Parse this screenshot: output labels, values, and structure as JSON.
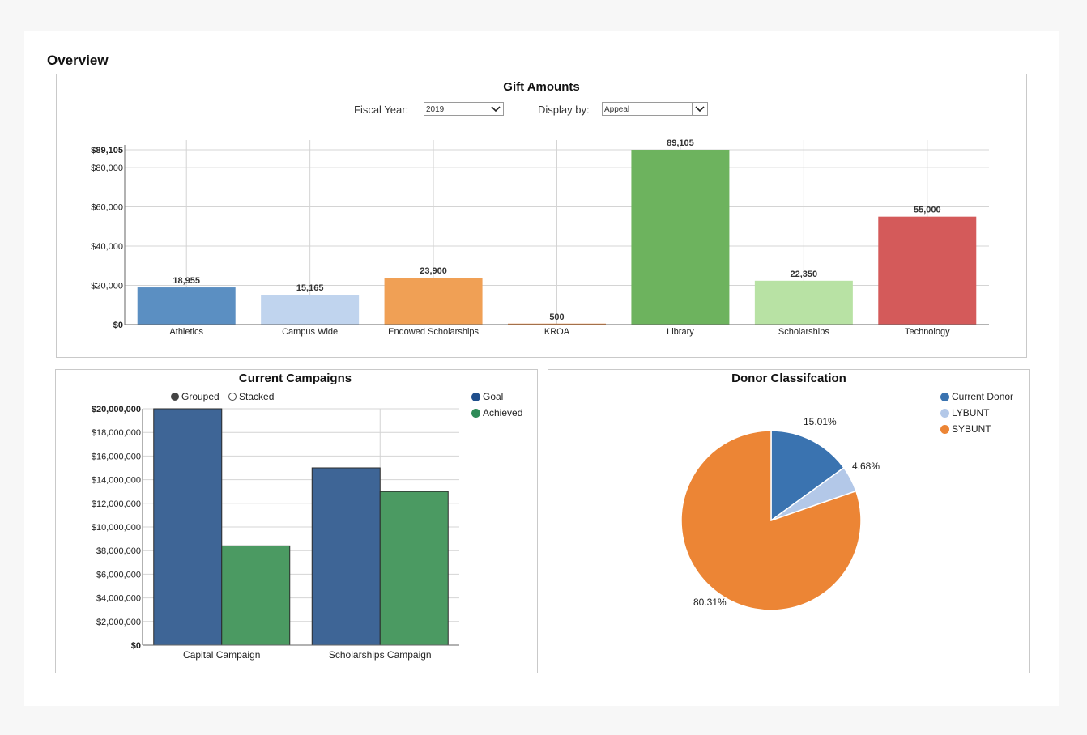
{
  "page": {
    "title": "Overview"
  },
  "gift_panel": {
    "title": "Gift Amounts",
    "fiscal_year_label": "Fiscal Year:",
    "fiscal_year_value": "2019",
    "display_by_label": "Display by:",
    "display_by_value": "Appeal"
  },
  "campaign_panel": {
    "title": "Current Campaigns",
    "grouped_label": "Grouped",
    "stacked_label": "Stacked"
  },
  "donor_panel": {
    "title": "Donor Classifcation"
  },
  "chart_data": [
    {
      "id": "gift",
      "type": "bar",
      "title": "Gift Amounts",
      "categories": [
        "Athletics",
        "Campus Wide",
        "Endowed Scholarships",
        "KROA",
        "Library",
        "Scholarships",
        "Technology"
      ],
      "values": [
        18955,
        15165,
        23900,
        500,
        89105,
        22350,
        55000
      ],
      "labels": [
        "18,955",
        "15,165",
        "23,900",
        "500",
        "89,105",
        "22,350",
        "55,000"
      ],
      "colors": [
        "#5b8fc2",
        "#c0d4ee",
        "#f0a055",
        "#e07b2e",
        "#6db35e",
        "#b8e2a4",
        "#d45a5a"
      ],
      "ylim": [
        0,
        89105
      ],
      "yticks": [
        0,
        20000,
        40000,
        60000,
        80000,
        89105
      ],
      "ytick_labels": [
        "$0",
        "$20,000",
        "$40,000",
        "$60,000",
        "$80,000",
        "$89,105"
      ],
      "bold_ticks": [
        "$0",
        "$89,105"
      ]
    },
    {
      "id": "campaign",
      "type": "bar",
      "title": "Current Campaigns",
      "categories": [
        "Capital Campaign",
        "Scholarships Campaign"
      ],
      "series": [
        {
          "name": "Goal",
          "color": "#3e6596",
          "values": [
            20000000,
            15000000
          ]
        },
        {
          "name": "Achieved",
          "color": "#4b9a62",
          "values": [
            8400000,
            13000000
          ]
        }
      ],
      "ylim": [
        0,
        20000000
      ],
      "yticks": [
        0,
        2000000,
        4000000,
        6000000,
        8000000,
        10000000,
        12000000,
        14000000,
        16000000,
        18000000,
        20000000
      ],
      "ytick_labels": [
        "$0",
        "$2,000,000",
        "$4,000,000",
        "$6,000,000",
        "$8,000,000",
        "$10,000,000",
        "$12,000,000",
        "$14,000,000",
        "$16,000,000",
        "$18,000,000",
        "$20,000,000"
      ],
      "bold_ticks": [
        "$0",
        "$20,000,000"
      ],
      "mode": "Grouped"
    },
    {
      "id": "donor",
      "type": "pie",
      "title": "Donor Classifcation",
      "slices": [
        {
          "name": "Current Donor",
          "value": 15.01,
          "label": "15.01%",
          "color": "#3a73b0"
        },
        {
          "name": "LYBUNT",
          "value": 4.68,
          "label": "4.68%",
          "color": "#b3c8e8"
        },
        {
          "name": "SYBUNT",
          "value": 80.31,
          "label": "80.31%",
          "color": "#ec8535"
        }
      ]
    }
  ]
}
